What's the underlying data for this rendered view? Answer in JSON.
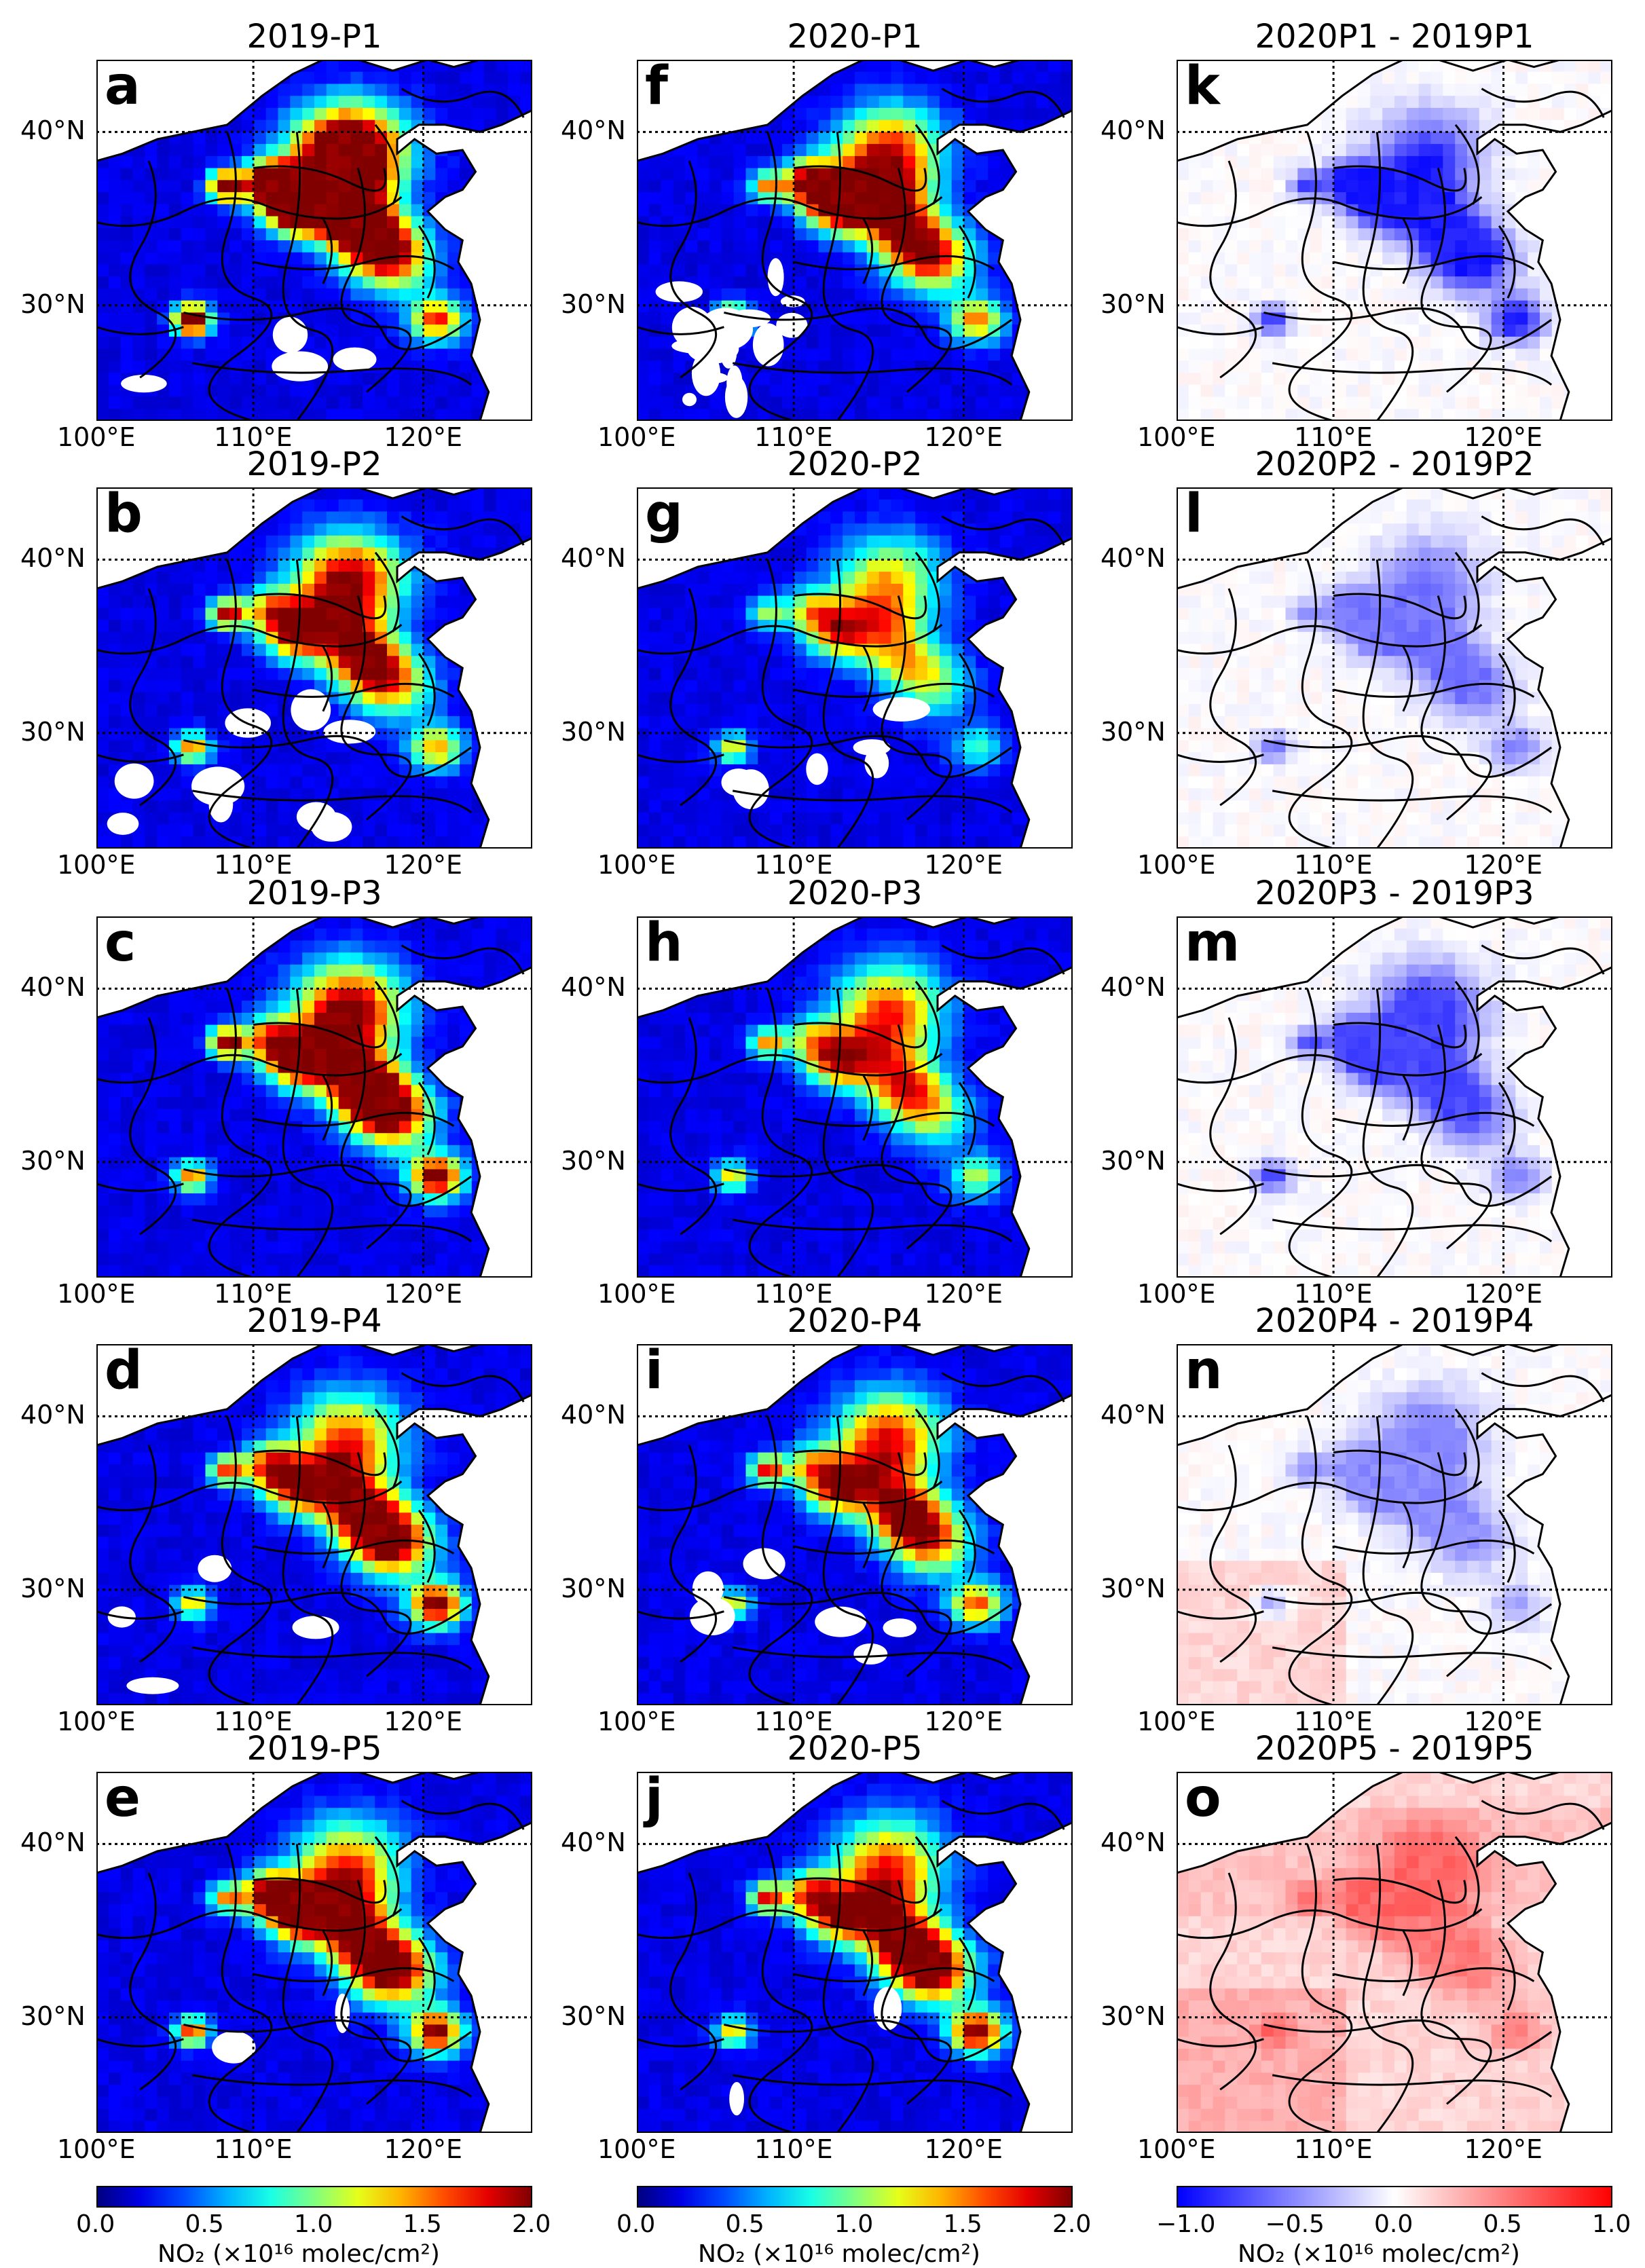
{
  "columns": [
    {
      "panels": [
        {
          "letter": "a",
          "title": "2019-P1",
          "kind": "abs",
          "variant": 1
        },
        {
          "letter": "b",
          "title": "2019-P2",
          "kind": "abs",
          "variant": 2
        },
        {
          "letter": "c",
          "title": "2019-P3",
          "kind": "abs",
          "variant": 3
        },
        {
          "letter": "d",
          "title": "2019-P4",
          "kind": "abs",
          "variant": 4
        },
        {
          "letter": "e",
          "title": "2019-P5",
          "kind": "abs",
          "variant": 5
        }
      ]
    },
    {
      "panels": [
        {
          "letter": "f",
          "title": "2020-P1",
          "kind": "abs",
          "variant": 6
        },
        {
          "letter": "g",
          "title": "2020-P2",
          "kind": "abs",
          "variant": 7
        },
        {
          "letter": "h",
          "title": "2020-P3",
          "kind": "abs",
          "variant": 8
        },
        {
          "letter": "i",
          "title": "2020-P4",
          "kind": "abs",
          "variant": 9
        },
        {
          "letter": "j",
          "title": "2020-P5",
          "kind": "abs",
          "variant": 10
        }
      ]
    },
    {
      "panels": [
        {
          "letter": "k",
          "title": "2020P1 - 2019P1",
          "kind": "diff",
          "variant": 11
        },
        {
          "letter": "l",
          "title": "2020P2 - 2019P2",
          "kind": "diff",
          "variant": 12
        },
        {
          "letter": "m",
          "title": "2020P3 - 2019P3",
          "kind": "diff",
          "variant": 13
        },
        {
          "letter": "n",
          "title": "2020P4 - 2019P4",
          "kind": "diff",
          "variant": 14
        },
        {
          "letter": "o",
          "title": "2020P5 - 2019P5",
          "kind": "diff",
          "variant": 15
        }
      ]
    }
  ],
  "axes": {
    "lat_labels": [
      "40°N",
      "30°N"
    ],
    "lon_labels": [
      "100°E",
      "110°E",
      "120°E"
    ]
  },
  "colorbars": [
    {
      "ticks": [
        "0.0",
        "0.5",
        "1.0",
        "1.5",
        "2.0"
      ],
      "label": "NO₂ (×10¹⁶ molec/cm²)",
      "colormap": "jet"
    },
    {
      "ticks": [
        "0.0",
        "0.5",
        "1.0",
        "1.5",
        "2.0"
      ],
      "label": "NO₂ (×10¹⁶ molec/cm²)",
      "colormap": "jet"
    },
    {
      "ticks": [
        "−1.0",
        "−0.5",
        "0.0",
        "0.5",
        "1.0"
      ],
      "label": "NO₂ (×10¹⁶ molec/cm²)",
      "colormap": "bwr"
    }
  ]
}
